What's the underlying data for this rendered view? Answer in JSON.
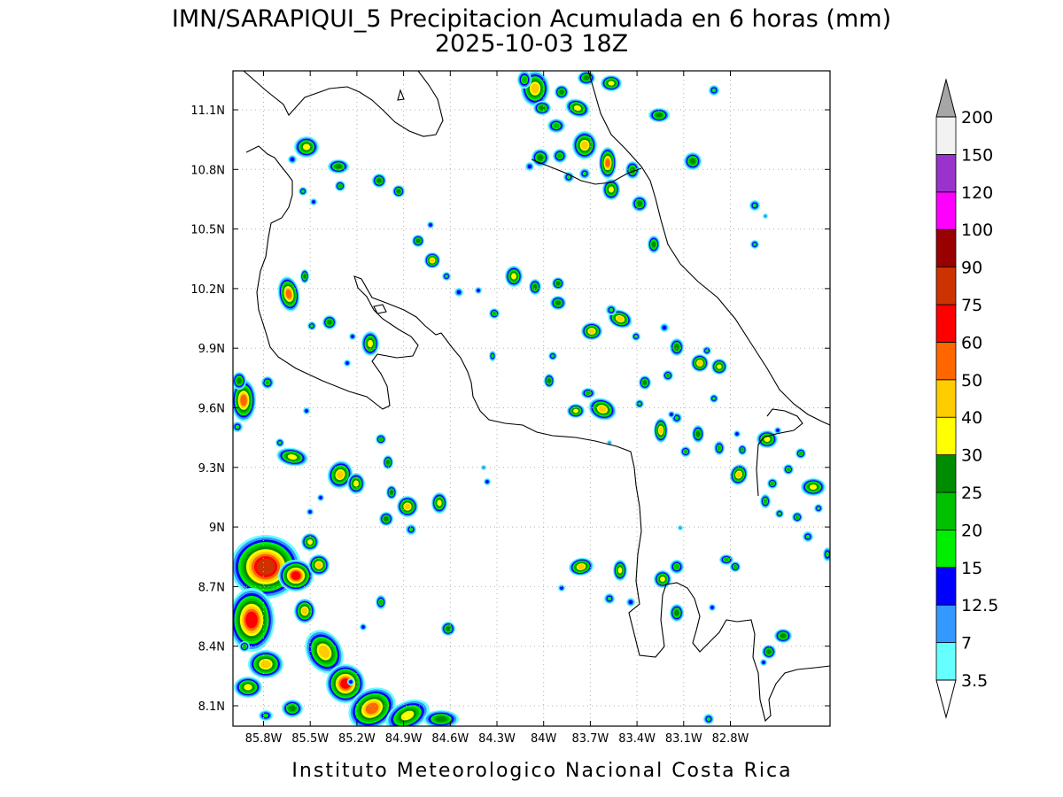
{
  "title": {
    "line1": "IMN/SARAPIQUI_5 Precipitacion Acumulada en 6 horas (mm)",
    "line2": "2025-10-03 18Z"
  },
  "footer": "Instituto Meteorologico Nacional Costa Rica",
  "axes": {
    "lon_ticks": [
      "85.8W",
      "85.5W",
      "85.2W",
      "84.9W",
      "84.6W",
      "84.3W",
      "84W",
      "83.7W",
      "83.4W",
      "83.1W",
      "82.8W"
    ],
    "lat_ticks": [
      "11.1N",
      "10.8N",
      "10.5N",
      "10.2N",
      "9.9N",
      "9.6N",
      "9.3N",
      "9N",
      "8.7N",
      "8.4N",
      "8.1N"
    ]
  },
  "colorbar": {
    "labels": [
      "3.5",
      "7",
      "12.5",
      "15",
      "20",
      "25",
      "30",
      "40",
      "50",
      "60",
      "75",
      "90",
      "100",
      "120",
      "150",
      "200"
    ],
    "colors": [
      "#66ffff",
      "#3399ff",
      "#0000ff",
      "#00ee00",
      "#00c000",
      "#008c00",
      "#ffff00",
      "#ffcc00",
      "#ff6600",
      "#ff0000",
      "#cc3300",
      "#990000",
      "#ff00ff",
      "#9933cc",
      "#f2f2f2"
    ],
    "over_color": "#a6a6a6",
    "under_color": "#ffffff"
  }
}
